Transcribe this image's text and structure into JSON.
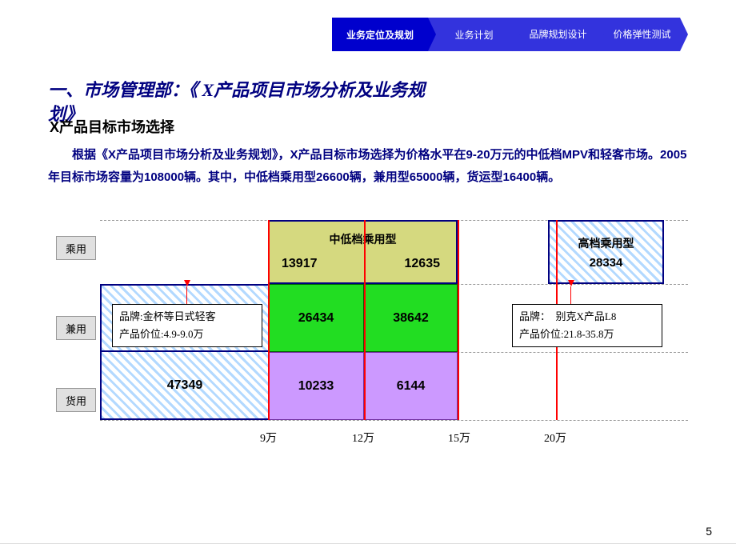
{
  "nav": {
    "items": [
      {
        "label": "业务定位及规划",
        "bg": "#0000cd",
        "active": true
      },
      {
        "label": "业务计划",
        "bg": "#3333dd"
      },
      {
        "label": "品牌规划设计",
        "bg": "#3333dd",
        "twoLine": true,
        "l1": "品牌规划",
        "l2": "设计"
      },
      {
        "label": "价格弹性测试",
        "bg": "#3333dd",
        "twoLine": true,
        "l1": "价格弹性",
        "l2": "测试"
      }
    ]
  },
  "heading": {
    "line1": "一、市场管理部：《 X产品项目市场分析及业务规",
    "line2": "划》",
    "sub": " X产品目标市场选择"
  },
  "paragraph": "　　根据《X产品项目市场分析及业务规划》，X产品目标市场选择为价格水平在9-20万元的中低档MPV和轻客市场。2005年目标市场容量为108000辆。其中，中低档乘用型26600辆，兼用型65000辆，货运型16400辆。",
  "rows": [
    "乘用",
    "兼用",
    "货用"
  ],
  "xticks": [
    "9万",
    "12万",
    "15万",
    "20万"
  ],
  "cells": {
    "midlow": {
      "title": "中低档乘用型",
      "n1": "13917",
      "n2": "12635",
      "bg": "#d5d97f"
    },
    "high": {
      "title": "高档乘用型",
      "n": "28334"
    },
    "g1": "26434",
    "g2": "38642",
    "left3": "47349",
    "p1": "10233",
    "p2": "6144"
  },
  "callouts": {
    "c1": {
      "l1": "品牌:金杯等日式轻客",
      "l2": "产品价位:4.9-9.0万"
    },
    "c2": {
      "l1": "品牌：　别克X产品L8",
      "l2": "产品价位:21.8-35.8万"
    }
  },
  "pagenum": "5",
  "colors": {
    "navy": "#000080",
    "red": "#ff0000",
    "green": "#22dd22",
    "purple": "#cc99ff",
    "olive": "#d5d97f"
  }
}
